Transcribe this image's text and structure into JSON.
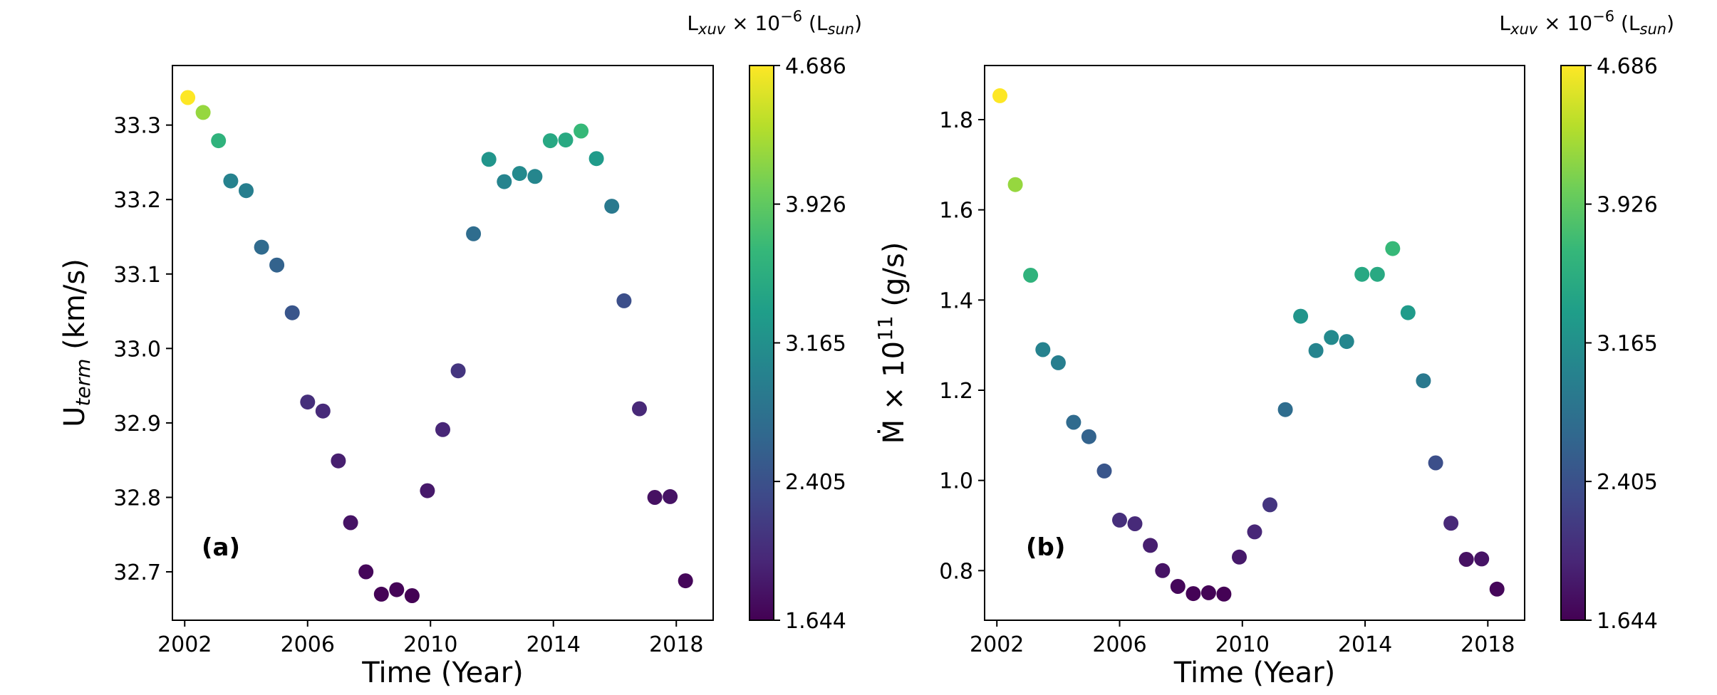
{
  "colors": {
    "viridis": [
      "#440154",
      "#482878",
      "#3e4989",
      "#31688e",
      "#26828e",
      "#1f9e89",
      "#35b779",
      "#6ece58",
      "#b5de2b",
      "#fde725"
    ],
    "frame": "#000000"
  },
  "chart_data": [
    {
      "type": "scatter",
      "panel_label": "(a)",
      "xlabel": "Time (Year)",
      "ylabel_main": "U",
      "ylabel_sub": "term",
      "ylabel_unit": " (km/s)",
      "xlim": [
        2001.6,
        2019.2
      ],
      "ylim": [
        32.635,
        33.38
      ],
      "xticks": [
        2002,
        2006,
        2010,
        2014,
        2018
      ],
      "xtick_labels": [
        "2002",
        "2006",
        "2010",
        "2014",
        "2018"
      ],
      "yticks": [
        32.7,
        32.8,
        32.9,
        33.0,
        33.1,
        33.2,
        33.3
      ],
      "ytick_labels": [
        "32.7",
        "32.8",
        "32.9",
        "33.0",
        "33.1",
        "33.2",
        "33.3"
      ],
      "colorbar": {
        "title_main": "L",
        "title_sub1": "xuv",
        "title_mid": " × ",
        "title_base": "10",
        "title_exp": "−6",
        "title_unit_open": " (L",
        "title_sub2": "sun",
        "title_unit_close": ")",
        "range": [
          1.644,
          4.686
        ],
        "ticks": [
          1.644,
          2.405,
          3.165,
          3.926,
          4.686
        ],
        "tick_labels": [
          "1.644",
          "2.405",
          "3.165",
          "3.926",
          "4.686"
        ]
      },
      "x": [
        2002.1,
        2002.6,
        2003.1,
        2003.5,
        2004.0,
        2004.5,
        2005.0,
        2005.5,
        2006.0,
        2006.5,
        2007.0,
        2007.4,
        2007.9,
        2008.4,
        2008.9,
        2009.4,
        2009.9,
        2010.4,
        2010.9,
        2011.4,
        2011.9,
        2012.4,
        2012.9,
        2013.4,
        2013.9,
        2014.4,
        2014.9,
        2015.4,
        2015.9,
        2016.3,
        2016.8,
        2017.3,
        2017.8,
        2018.3
      ],
      "y": [
        33.337,
        33.317,
        33.279,
        33.225,
        33.212,
        33.136,
        33.112,
        33.048,
        32.928,
        32.916,
        32.849,
        32.766,
        32.7,
        32.67,
        32.676,
        32.668,
        32.809,
        32.891,
        32.97,
        33.154,
        33.254,
        33.224,
        33.235,
        33.231,
        33.279,
        33.28,
        33.292,
        33.255,
        33.191,
        33.064,
        32.919,
        32.8,
        32.801,
        32.688
      ],
      "c": [
        4.686,
        4.2,
        3.6,
        3.0,
        2.95,
        2.7,
        2.6,
        2.45,
        2.05,
        2.0,
        1.9,
        1.8,
        1.7,
        1.66,
        1.67,
        1.65,
        1.85,
        1.97,
        2.12,
        2.72,
        3.22,
        3.02,
        3.09,
        3.05,
        3.47,
        3.48,
        3.68,
        3.3,
        2.88,
        2.38,
        1.99,
        1.78,
        1.8,
        1.7
      ]
    },
    {
      "type": "scatter",
      "panel_label": "(b)",
      "xlabel": "Time (Year)",
      "ylabel_main": "Ṁ × 10",
      "ylabel_exp": "11",
      "ylabel_unit": " (g/s)",
      "xlim": [
        2001.6,
        2019.2
      ],
      "ylim": [
        0.69,
        1.92
      ],
      "xticks": [
        2002,
        2006,
        2010,
        2014,
        2018
      ],
      "xtick_labels": [
        "2002",
        "2006",
        "2010",
        "2014",
        "2018"
      ],
      "yticks": [
        0.8,
        1.0,
        1.2,
        1.4,
        1.6,
        1.8
      ],
      "ytick_labels": [
        "0.8",
        "1.0",
        "1.2",
        "1.4",
        "1.6",
        "1.8"
      ],
      "colorbar": {
        "title_main": "L",
        "title_sub1": "xuv",
        "title_mid": " × ",
        "title_base": "10",
        "title_exp": "−6",
        "title_unit_open": " (L",
        "title_sub2": "sun",
        "title_unit_close": ")",
        "range": [
          1.644,
          4.686
        ],
        "ticks": [
          1.644,
          2.405,
          3.165,
          3.926,
          4.686
        ],
        "tick_labels": [
          "1.644",
          "2.405",
          "3.165",
          "3.926",
          "4.686"
        ]
      },
      "x": [
        2002.1,
        2002.6,
        2003.1,
        2003.5,
        2004.0,
        2004.5,
        2005.0,
        2005.5,
        2006.0,
        2006.5,
        2007.0,
        2007.4,
        2007.9,
        2008.4,
        2008.9,
        2009.4,
        2009.9,
        2010.4,
        2010.9,
        2011.4,
        2011.9,
        2012.4,
        2012.9,
        2013.4,
        2013.9,
        2014.4,
        2014.9,
        2015.4,
        2015.9,
        2016.3,
        2016.8,
        2017.3,
        2017.8,
        2018.3
      ],
      "y": [
        1.853,
        1.656,
        1.455,
        1.29,
        1.261,
        1.129,
        1.097,
        1.021,
        0.912,
        0.904,
        0.856,
        0.8,
        0.765,
        0.749,
        0.751,
        0.748,
        0.83,
        0.886,
        0.946,
        1.157,
        1.364,
        1.288,
        1.317,
        1.308,
        1.457,
        1.457,
        1.514,
        1.372,
        1.221,
        1.039,
        0.905,
        0.825,
        0.826,
        0.759
      ],
      "c": [
        4.686,
        4.2,
        3.6,
        3.0,
        2.95,
        2.7,
        2.6,
        2.45,
        2.05,
        2.0,
        1.9,
        1.8,
        1.7,
        1.66,
        1.67,
        1.65,
        1.85,
        1.97,
        2.12,
        2.72,
        3.22,
        3.02,
        3.09,
        3.05,
        3.47,
        3.48,
        3.68,
        3.3,
        2.88,
        2.38,
        1.99,
        1.78,
        1.8,
        1.7
      ]
    }
  ]
}
